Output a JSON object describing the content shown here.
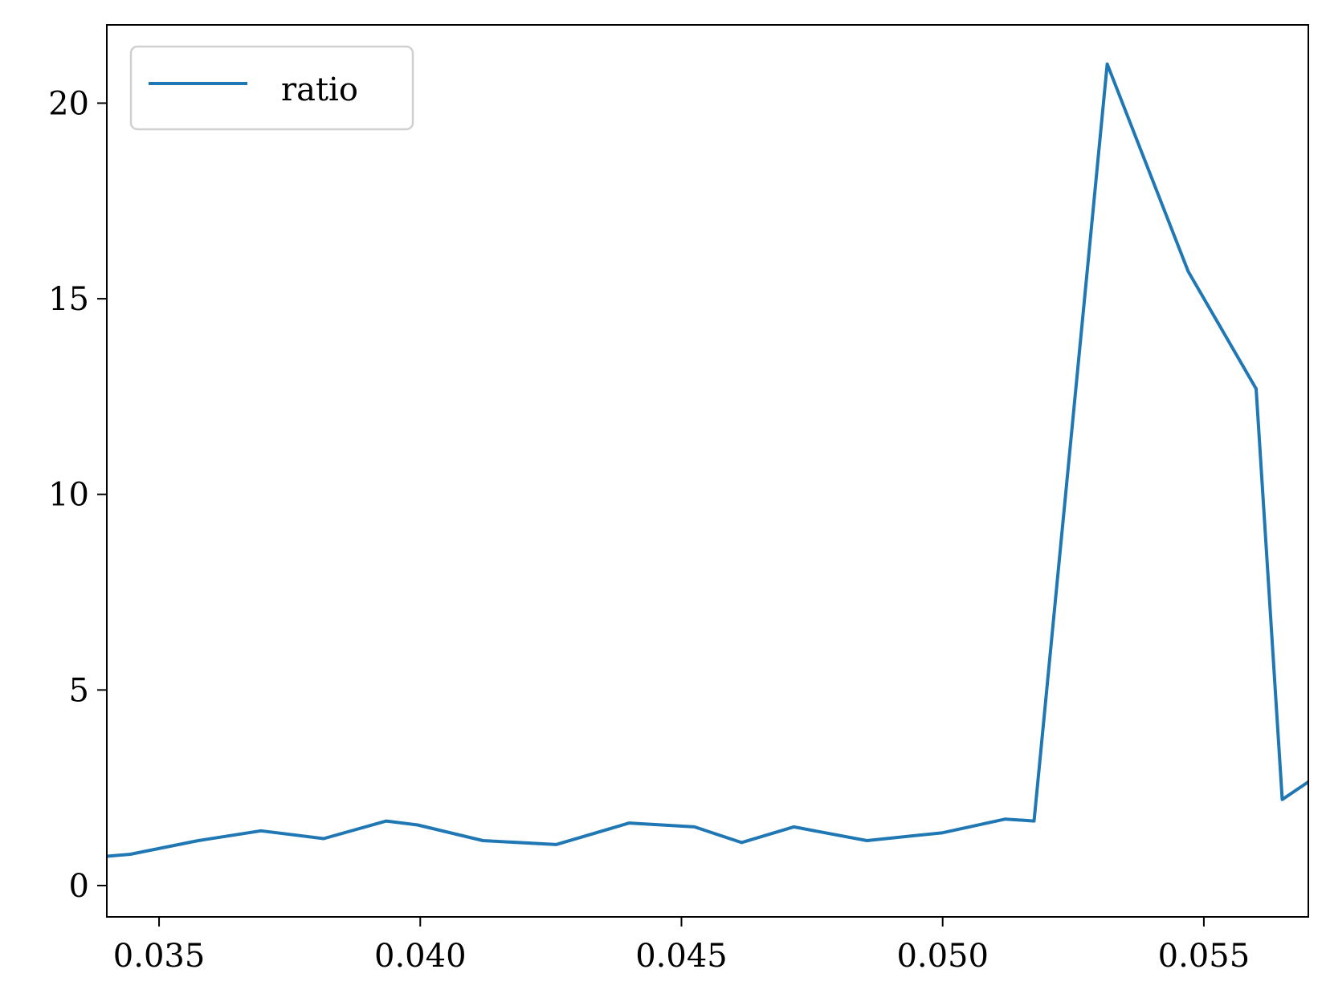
{
  "chart_data": {
    "type": "line",
    "title": "",
    "xlabel": "",
    "ylabel": "",
    "xlim": [
      0.034,
      0.057
    ],
    "ylim": [
      -0.8,
      22
    ],
    "grid": false,
    "legend_position": "upper-left",
    "x_ticks": [
      0.035,
      0.04,
      0.045,
      0.05,
      0.055
    ],
    "x_tick_labels": [
      "0.035",
      "0.040",
      "0.045",
      "0.050",
      "0.055"
    ],
    "y_ticks": [
      0,
      5,
      10,
      15,
      20
    ],
    "y_tick_labels": [
      "0",
      "5",
      "10",
      "15",
      "20"
    ],
    "series": [
      {
        "name": "ratio",
        "color": "#1f77b4",
        "x": [
          0.034,
          0.03445,
          0.03575,
          0.03695,
          0.03815,
          0.03935,
          0.03995,
          0.0412,
          0.0426,
          0.044,
          0.04525,
          0.04615,
          0.04715,
          0.04855,
          0.05,
          0.0512,
          0.05175,
          0.05315,
          0.0547,
          0.056,
          0.0565,
          0.057
        ],
        "values": [
          0.75,
          0.8,
          1.15,
          1.4,
          1.2,
          1.65,
          1.55,
          1.15,
          1.05,
          1.6,
          1.5,
          1.1,
          1.5,
          1.15,
          1.35,
          1.7,
          1.65,
          21.0,
          15.7,
          12.7,
          2.2,
          2.65
        ]
      }
    ]
  }
}
